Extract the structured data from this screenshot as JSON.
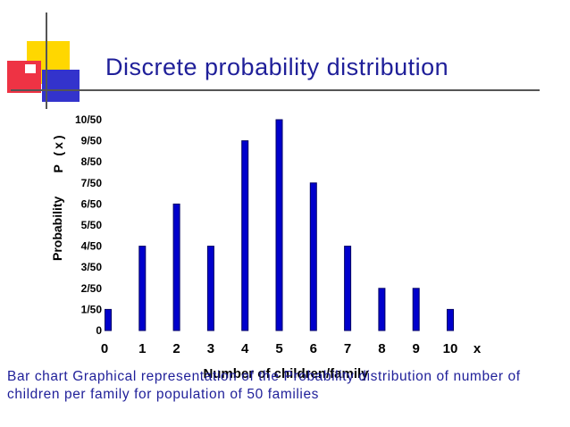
{
  "slide": {
    "title": "Discrete probability distribution",
    "caption": "Bar chart Graphical representation of the Probability distribution of number of children per family for population of 50 families"
  },
  "colors": {
    "bar": "#0000cc",
    "title": "#1f1f99",
    "caption": "#1f1f99",
    "deco_yellow": "#ffd700",
    "deco_red": "#ee3344",
    "deco_blue": "#3333cc"
  },
  "chart_data": {
    "type": "bar",
    "title": "",
    "xlabel": "Number of children/family",
    "x_var": "x",
    "ylabel": "Probability",
    "ylabel_symbol": "P (x)",
    "categories": [
      "0",
      "1",
      "2",
      "3",
      "4",
      "5",
      "6",
      "7",
      "8",
      "9",
      "10"
    ],
    "values": [
      1,
      4,
      6,
      4,
      9,
      10,
      7,
      4,
      2,
      2,
      1
    ],
    "value_denominator": 50,
    "yticks": [
      "0",
      "1/50",
      "2/50",
      "3/50",
      "4/50",
      "5/50",
      "6/50",
      "7/50",
      "8/50",
      "9/50",
      "10/50"
    ],
    "ylim": [
      0,
      10
    ],
    "grid": false,
    "legend": "none"
  }
}
